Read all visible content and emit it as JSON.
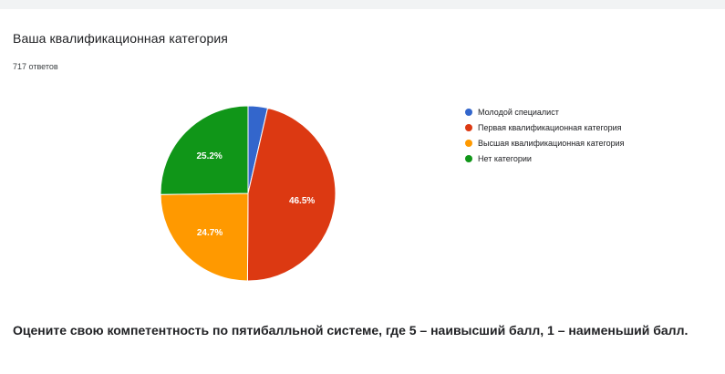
{
  "card": {
    "title": "Ваша квалификационная категория",
    "responses": "717 ответов"
  },
  "chart_data": {
    "type": "pie",
    "categories": [
      "Молодой специалист",
      "Первая квалификационная категория",
      "Высшая квалификационная категория",
      "Нет категории"
    ],
    "values": [
      3.6,
      46.5,
      24.7,
      25.2
    ],
    "data_labels": [
      "",
      "46.5%",
      "24.7%",
      "25.2%"
    ],
    "colors": [
      "#3366cc",
      "#dc3912",
      "#ff9900",
      "#109618"
    ],
    "legend_position": "right",
    "start": "12 o'clock",
    "direction": "clockwise"
  },
  "next_question": {
    "text": "Оцените свою компетентность по пятибалльной системе, где 5 – наивысший балл, 1 – наименьший балл."
  }
}
